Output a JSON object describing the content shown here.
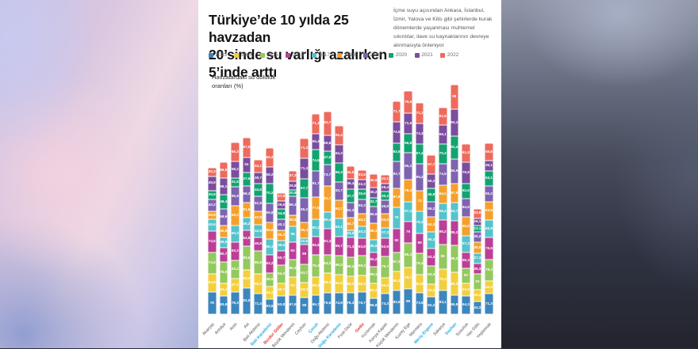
{
  "header": {
    "title": "Türkiye’de 10 yılda 25 havzadan\n 20’sinde su varlığı azalırken\n5’inde arttı",
    "annotation": "İçme suyu açısından Ankara, İstanbul, İzmir, Yalova ve Kilis gibi şehirlerde kurak dönemlerde yaşanması muhtemel sıkıntılar, ilave su kaynaklarının devreye alınmasıyla önleniyor"
  },
  "chart_data": {
    "type": "bar",
    "stacked": true,
    "title": "Havzalardaki su doluluk\noranları (%)",
    "unit": "%",
    "grid": false,
    "legend_position": "top",
    "decimal_separator": ",",
    "categories": [
      "Akarçay",
      "Antalya",
      "Aras",
      "Asi",
      "Batı Akdeniz",
      "Batı Karadeniz",
      "Burdur Göller",
      "Büyük Menderes",
      "Ceyhan",
      "Çoruh",
      "Doğu Akdeniz",
      "Doğu Karadeniz",
      "Fırat-Dicle",
      "Gediz",
      "Kızılırmak",
      "Konya Kapalı",
      "Küçük Menderes",
      "Kuzey Ege",
      "Marmara",
      "Meriç-Ergene",
      "Sakarya",
      "Seyhan",
      "Susurluk",
      "Van Gölü",
      "Yeşilırmak"
    ],
    "category_label_colors": [
      "#4d4d4d",
      "#4d4d4d",
      "#4d4d4d",
      "#4d4d4d",
      "#4d4d4d",
      "#29abe2",
      "#e63329",
      "#4d4d4d",
      "#4d4d4d",
      "#29abe2",
      "#4d4d4d",
      "#29abe2",
      "#4d4d4d",
      "#e63329",
      "#4d4d4d",
      "#4d4d4d",
      "#4d4d4d",
      "#4d4d4d",
      "#4d4d4d",
      "#29abe2",
      "#4d4d4d",
      "#29abe2",
      "#4d4d4d",
      "#4d4d4d",
      "#4d4d4d"
    ],
    "highlight_legend": {
      "increase": "#29abe2",
      "notable_decrease": "#e63329",
      "default": "#4d4d4d"
    },
    "series": [
      {
        "name": "2013",
        "color": "#3c86be",
        "values": [
          78,
          63.8,
          78.3,
          92.5,
          71.4,
          53.5,
          63.8,
          67.6,
          58,
          65.7,
          75.6,
          74.9,
          76.3,
          76.7,
          56.9,
          73.3,
          83.6,
          89,
          73.9,
          62.2,
          83.1,
          65.8,
          64.3,
          44.3,
          71.3
        ]
      },
      {
        "name": "2014",
        "color": "#f3cf3d",
        "values": [
          64.8,
          44.3,
          47.3,
          63.3,
          69.2,
          43.2,
          43.7,
          63,
          53.3,
          66.3,
          69.3,
          64.3,
          56.2,
          58.3,
          50.4,
          54.3,
          66.3,
          75.7,
          63.9,
          43.2,
          76.3,
          80.3,
          43.2,
          43.2,
          44.3
        ]
      },
      {
        "name": "2015",
        "color": "#93c95e",
        "values": [
          74.6,
          75.6,
          63.2,
          83.6,
          80.5,
          48.5,
          64.3,
          60.3,
          63.7,
          75.3,
          63.2,
          66.3,
          66.3,
          69.3,
          59.1,
          75.7,
          67.3,
          85.3,
          76.4,
          63.3,
          85,
          96.3,
          53,
          53,
          76.3
        ]
      },
      {
        "name": "2016",
        "color": "#bb3f97",
        "values": [
          74.6,
          50.7,
          63.2,
          54.8,
          49.8,
          63.2,
          50.7,
          62,
          69,
          65.6,
          91.3,
          66.7,
          71.3,
          63.8,
          50.2,
          62.6,
          82,
          76,
          68,
          63.3,
          86.2,
          85.2,
          56.3,
          36.3,
          76.6
        ]
      },
      {
        "name": "2017",
        "color": "#54c3cc",
        "values": [
          40.6,
          36.5,
          60.3,
          45.2,
          42.6,
          55.1,
          36.5,
          56,
          22.6,
          60.2,
          60.4,
          63.1,
          23.6,
          40.2,
          45.5,
          37.3,
          76,
          67.4,
          78.3,
          56.3,
          58.4,
          63.7,
          57.3,
          37.3,
          62.9
        ]
      },
      {
        "name": "2018",
        "color": "#f5a02c",
        "values": [
          28.8,
          40.8,
          68.2,
          51.6,
          47.8,
          59.6,
          35.2,
          39.8,
          55.4,
          77.5,
          91.7,
          64.7,
          44.7,
          45.1,
          58.4,
          50.6,
          67.8,
          78.3,
          73,
          52.3,
          64.2,
          67.9,
          66.5,
          38.5,
          63.5
        ]
      },
      {
        "name": "2019",
        "color": "#7f63b0",
        "values": [
          42.2,
          58.6,
          65.8,
          58.3,
          51.9,
          65.8,
          40.1,
          66.3,
          85.2,
          91.7,
          73.7,
          63.7,
          52.3,
          50.3,
          56.5,
          45.5,
          93.7,
          95.2,
          95.2,
          55.2,
          74.5,
          84.9,
          64.8,
          35.2,
          55.2
        ]
      },
      {
        "name": "2020",
        "color": "#12a370",
        "values": [
          30.6,
          48.4,
          31.5,
          47.6,
          44.6,
          70.2,
          34.8,
          20.8,
          67.7,
          74.5,
          47.5,
          66.3,
          47.7,
          35.6,
          32.7,
          30.2,
          63.5,
          66.8,
          67.4,
          45.8,
          70.3,
          81.4,
          52.6,
          23.1,
          53.1
        ]
      },
      {
        "name": "2021",
        "color": "#7b4d9e",
        "values": [
          49.8,
          58.1,
          58.2,
          54,
          39.7,
          58.2,
          29.6,
          29.8,
          71.3,
          55.4,
          55.8,
          64.3,
          36.4,
          32.2,
          36.2,
          28.4,
          74.5,
          71.6,
          74.3,
          50.2,
          66.1,
          93.2,
          76.8,
          26.1,
          36.1
        ]
      },
      {
        "name": "2022",
        "color": "#ee6a5c",
        "values": [
          30.3,
          56.8,
          66.3,
          67.9,
          43.1,
          66.3,
          27.8,
          37.2,
          71.3,
          71.3,
          83.7,
          66.4,
          44.6,
          33.5,
          45.5,
          32.1,
          71.7,
          79.6,
          71.3,
          67.7,
          61.9,
          88,
          61.8,
          33.8,
          59.8
        ]
      }
    ]
  }
}
